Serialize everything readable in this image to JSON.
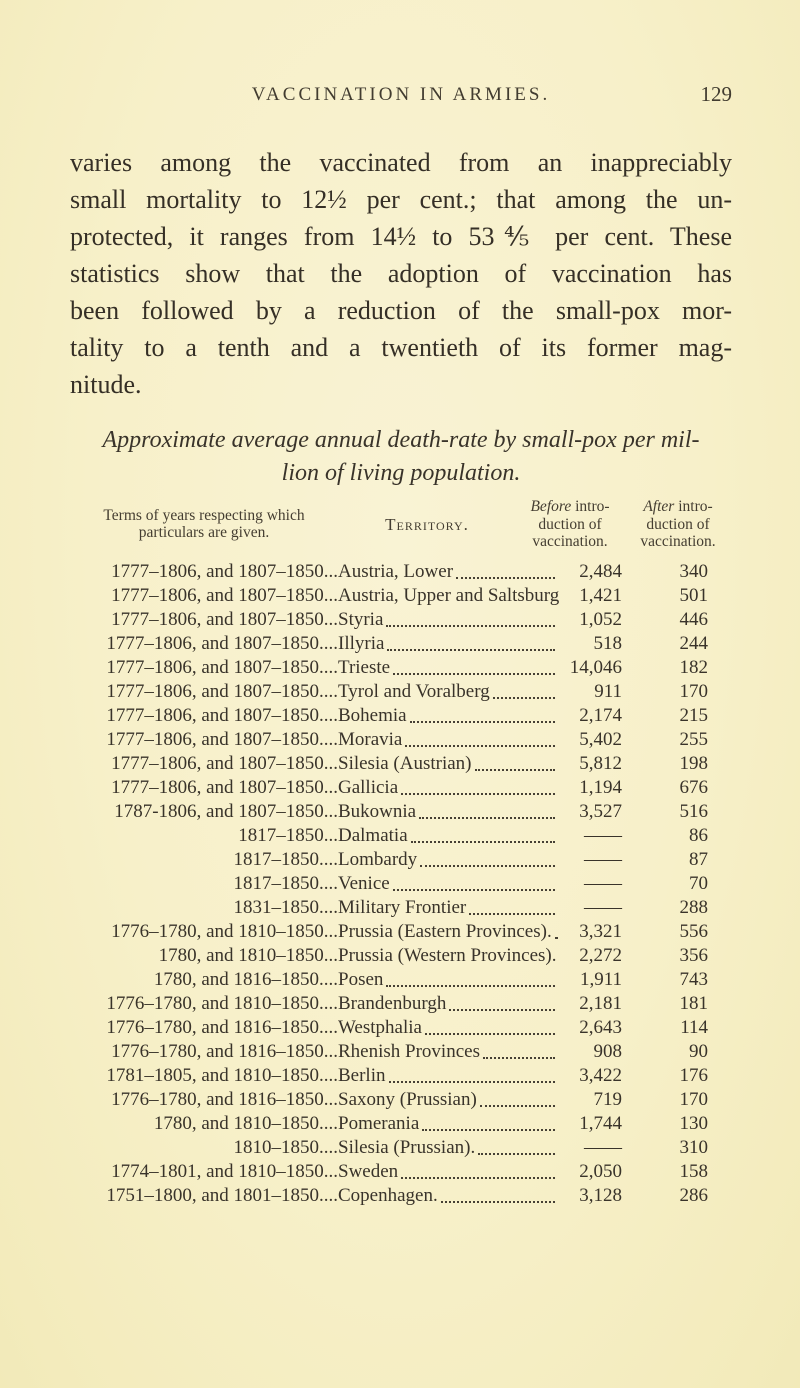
{
  "page": {
    "running_head": "VACCINATION IN ARMIES.",
    "page_number": "129"
  },
  "paragraph": {
    "lines": [
      "varies among the vaccinated from an inappreciably",
      "small mortality to 12½ per cent.; that among the un-",
      "protected, it ranges from 14½ to 53⅘ per cent.  These",
      "statistics show that the adoption of vaccination has",
      "been followed by a reduction of the small-pox mor-",
      "tality to a tenth and a twentieth of its former mag-"
    ],
    "last_line": "nitude."
  },
  "table": {
    "title_lines": [
      "Approximate average annual death-rate by small-pox per mil-",
      "lion of living population."
    ],
    "headers": {
      "terms_line1": "Terms of years respecting which",
      "terms_line2": "particulars are given.",
      "territory": "Territory.",
      "before": {
        "em": "Before",
        "rest": " intro-",
        "line2": "duction of",
        "line3": "vaccination."
      },
      "after": {
        "em": "After",
        "rest": " intro-",
        "line2": "duction of",
        "line3": "vaccination."
      }
    },
    "rows": [
      {
        "terms": "1777–1806, and 1807–1850...",
        "territory": "Austria, Lower",
        "before": "2,484",
        "after": "340"
      },
      {
        "terms": "1777–1806, and 1807–1850...",
        "territory": "Austria, Upper and Saltsburg",
        "before": "1,421",
        "after": "501"
      },
      {
        "terms": "1777–1806, and 1807–1850...",
        "territory": "Styria",
        "before": "1,052",
        "after": "446"
      },
      {
        "terms": "1777–1806, and 1807–1850....",
        "territory": "Illyria",
        "before": "518",
        "after": "244"
      },
      {
        "terms": "1777–1806, and 1807–1850....",
        "territory": "Trieste",
        "before": "14,046",
        "after": "182"
      },
      {
        "terms": "1777–1806, and 1807–1850....",
        "territory": "Tyrol and Voralberg",
        "before": "911",
        "after": "170"
      },
      {
        "terms": "1777–1806, and 1807–1850....",
        "territory": "Bohemia",
        "before": "2,174",
        "after": "215"
      },
      {
        "terms": "1777–1806, and 1807–1850....",
        "territory": "Moravia",
        "before": "5,402",
        "after": "255"
      },
      {
        "terms": "1777–1806, and 1807–1850...",
        "territory": "Silesia (Austrian)",
        "before": "5,812",
        "after": "198"
      },
      {
        "terms": "1777–1806, and 1807–1850...",
        "territory": "Gallicia",
        "before": "1,194",
        "after": "676"
      },
      {
        "terms": "1787-1806, and 1807–1850...",
        "territory": "Bukownia",
        "before": "3,527",
        "after": "516"
      },
      {
        "terms": "1817–1850...",
        "territory": "Dalmatia",
        "before": "——",
        "after": "86"
      },
      {
        "terms": "1817–1850....",
        "territory": "Lombardy",
        "before": "——",
        "after": "87"
      },
      {
        "terms": "1817–1850....",
        "territory": "Venice",
        "before": "——",
        "after": "70"
      },
      {
        "terms": "1831–1850....",
        "territory": "Military Frontier",
        "before": "——",
        "after": "288"
      },
      {
        "terms": "1776–1780, and 1810–1850...",
        "territory": "Prussia (Eastern Provinces).",
        "before": "3,321",
        "after": "556"
      },
      {
        "terms": "1780, and 1810–1850...",
        "territory": "Prussia (Western Provinces).",
        "before": "2,272",
        "after": "356"
      },
      {
        "terms": "1780, and 1816–1850....",
        "territory": "Posen",
        "before": "1,911",
        "after": "743"
      },
      {
        "terms": "1776–1780, and 1810–1850....",
        "territory": "Brandenburgh",
        "before": "2,181",
        "after": "181"
      },
      {
        "terms": "1776–1780, and 1816–1850....",
        "territory": "Westphalia",
        "before": "2,643",
        "after": "114"
      },
      {
        "terms": "1776–1780, and 1816–1850...",
        "territory": "Rhenish Provinces",
        "before": "908",
        "after": "90"
      },
      {
        "terms": "1781–1805, and 1810–1850....",
        "territory": "Berlin",
        "before": "3,422",
        "after": "176"
      },
      {
        "terms": "1776–1780, and 1816–1850...",
        "territory": "Saxony (Prussian)",
        "before": "719",
        "after": "170"
      },
      {
        "terms": "1780, and 1810–1850....",
        "territory": "Pomerania",
        "before": "1,744",
        "after": "130"
      },
      {
        "terms": "1810–1850....",
        "territory": "Silesia (Prussian).",
        "before": "——",
        "after": "310"
      },
      {
        "terms": "1774–1801, and 1810–1850...",
        "territory": "Sweden",
        "before": "2,050",
        "after": "158"
      },
      {
        "terms": "1751–1800, and 1801–1850....",
        "territory": "Copenhagen.",
        "before": "3,128",
        "after": "286"
      }
    ]
  }
}
